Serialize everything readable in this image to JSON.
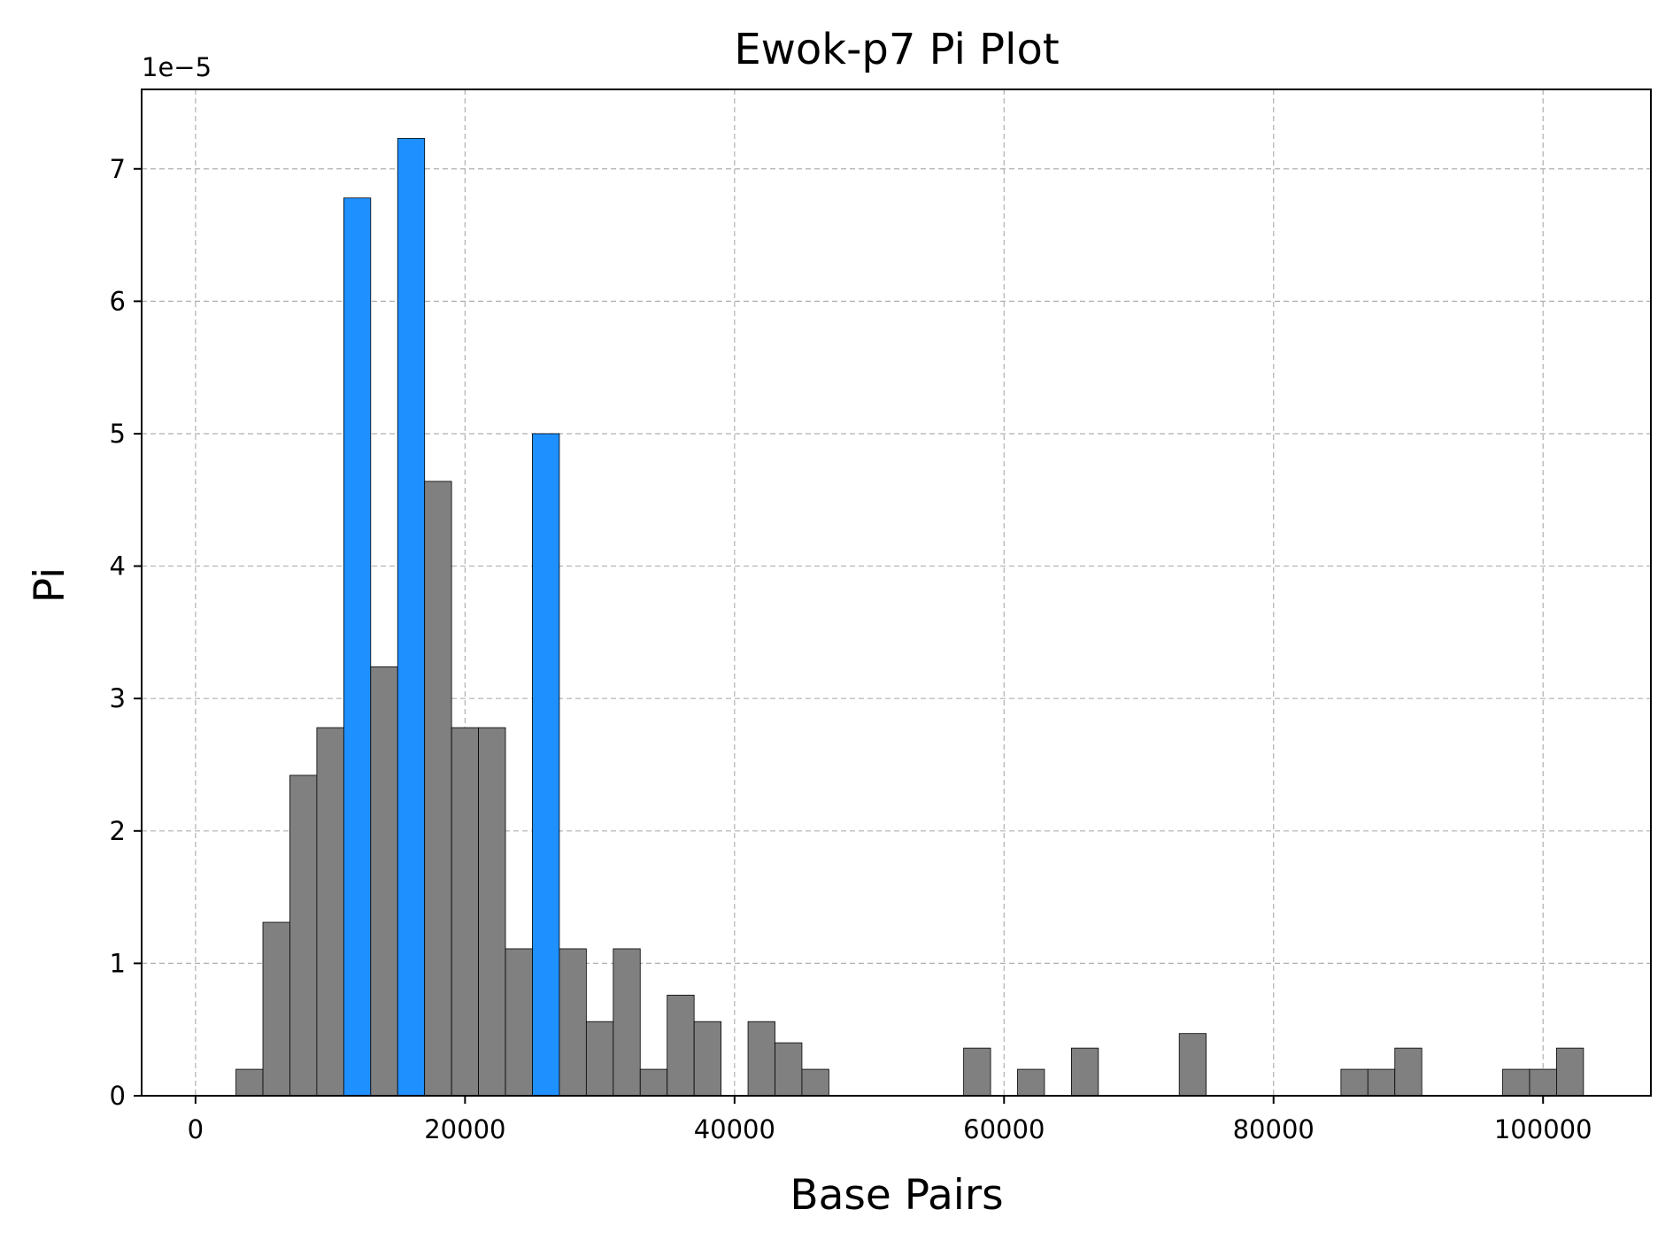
{
  "chart_data": {
    "type": "bar",
    "title": "Ewok-p7 Pi Plot",
    "xlabel": "Base Pairs",
    "ylabel": "Pi",
    "y_offset_label": "1e−5",
    "y_scale_exponent": -5,
    "xlim": [
      -4000,
      108000
    ],
    "ylim": [
      0,
      7.6
    ],
    "x_ticks": [
      0,
      20000,
      40000,
      60000,
      80000,
      100000
    ],
    "x_tick_labels": [
      "0",
      "20000",
      "40000",
      "60000",
      "80000",
      "100000"
    ],
    "y_ticks": [
      0,
      1,
      2,
      3,
      4,
      5,
      6,
      7
    ],
    "y_tick_labels": [
      "0",
      "1",
      "2",
      "3",
      "4",
      "5",
      "6",
      "7"
    ],
    "grid": true,
    "bin_width": 2000,
    "colors": {
      "normal": "#808080",
      "highlight": "#1e90ff",
      "edge": "#000000"
    },
    "bars": [
      {
        "x0": 3000,
        "value": 0.2,
        "highlight": false
      },
      {
        "x0": 5000,
        "value": 1.31,
        "highlight": false
      },
      {
        "x0": 7000,
        "value": 2.42,
        "highlight": false
      },
      {
        "x0": 9000,
        "value": 2.78,
        "highlight": false
      },
      {
        "x0": 11000,
        "value": 6.78,
        "highlight": true
      },
      {
        "x0": 13000,
        "value": 3.24,
        "highlight": false
      },
      {
        "x0": 15000,
        "value": 7.23,
        "highlight": true
      },
      {
        "x0": 17000,
        "value": 4.64,
        "highlight": false
      },
      {
        "x0": 19000,
        "value": 2.78,
        "highlight": false
      },
      {
        "x0": 21000,
        "value": 2.78,
        "highlight": false
      },
      {
        "x0": 23000,
        "value": 1.11,
        "highlight": false
      },
      {
        "x0": 25000,
        "value": 5.0,
        "highlight": true
      },
      {
        "x0": 27000,
        "value": 1.11,
        "highlight": false
      },
      {
        "x0": 29000,
        "value": 0.56,
        "highlight": false
      },
      {
        "x0": 31000,
        "value": 1.11,
        "highlight": false
      },
      {
        "x0": 33000,
        "value": 0.2,
        "highlight": false
      },
      {
        "x0": 35000,
        "value": 0.76,
        "highlight": false
      },
      {
        "x0": 37000,
        "value": 0.56,
        "highlight": false
      },
      {
        "x0": 41000,
        "value": 0.56,
        "highlight": false
      },
      {
        "x0": 43000,
        "value": 0.4,
        "highlight": false
      },
      {
        "x0": 45000,
        "value": 0.2,
        "highlight": false
      },
      {
        "x0": 57000,
        "value": 0.36,
        "highlight": false
      },
      {
        "x0": 61000,
        "value": 0.2,
        "highlight": false
      },
      {
        "x0": 65000,
        "value": 0.36,
        "highlight": false
      },
      {
        "x0": 73000,
        "value": 0.47,
        "highlight": false
      },
      {
        "x0": 85000,
        "value": 0.2,
        "highlight": false
      },
      {
        "x0": 87000,
        "value": 0.2,
        "highlight": false
      },
      {
        "x0": 89000,
        "value": 0.36,
        "highlight": false
      },
      {
        "x0": 97000,
        "value": 0.2,
        "highlight": false
      },
      {
        "x0": 99000,
        "value": 0.2,
        "highlight": false
      },
      {
        "x0": 101000,
        "value": 0.36,
        "highlight": false
      }
    ]
  }
}
